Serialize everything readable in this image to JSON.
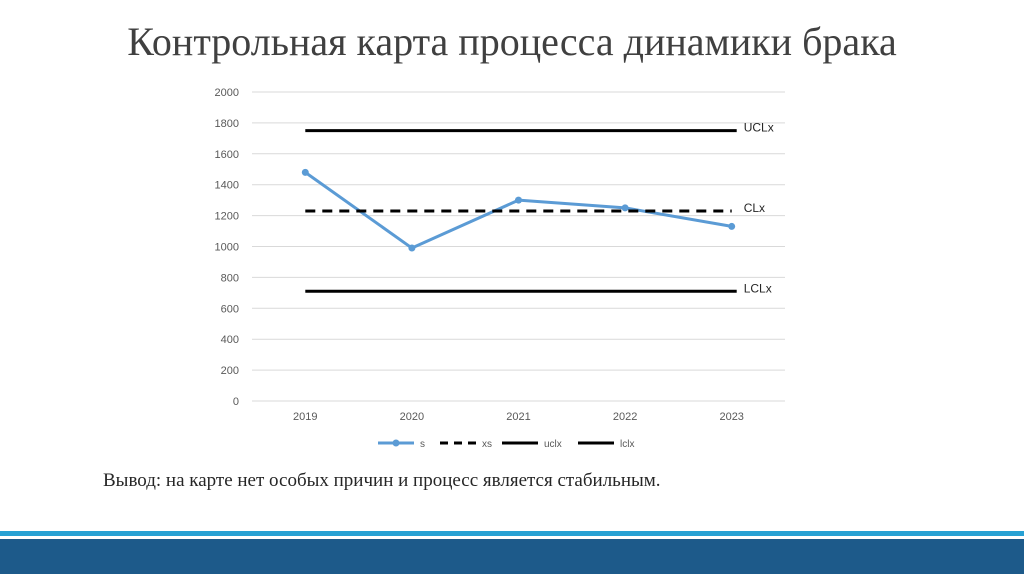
{
  "slide": {
    "title": "Контрольная карта процесса динамики брака",
    "conclusion": "Вывод: на карте нет особых причин и процесс является стабильным."
  },
  "chart_data": {
    "type": "line",
    "categories": [
      "2019",
      "2020",
      "2021",
      "2022",
      "2023"
    ],
    "ylim": [
      0,
      2000
    ],
    "yticks": [
      0,
      200,
      400,
      600,
      800,
      1000,
      1200,
      1400,
      1600,
      1800,
      2000
    ],
    "grid": true,
    "legend_position": "bottom",
    "series": [
      {
        "name": "s",
        "values": [
          1480,
          990,
          1300,
          1250,
          1130
        ],
        "color": "#5b9bd5",
        "style": "line-marker"
      },
      {
        "name": "xs",
        "values": [
          1230,
          1230,
          1230,
          1230,
          1230
        ],
        "color": "#000000",
        "style": "dashed"
      },
      {
        "name": "uclx",
        "values": [
          1750,
          1750,
          1750,
          1750,
          1750
        ],
        "color": "#000000",
        "style": "solid"
      },
      {
        "name": "lclx",
        "values": [
          710,
          710,
          710,
          710,
          710
        ],
        "color": "#000000",
        "style": "solid"
      }
    ],
    "annotations": [
      {
        "text": "UCLx",
        "value": 1750
      },
      {
        "text": "CLx",
        "value": 1230
      },
      {
        "text": "LCLx",
        "value": 710
      }
    ]
  }
}
